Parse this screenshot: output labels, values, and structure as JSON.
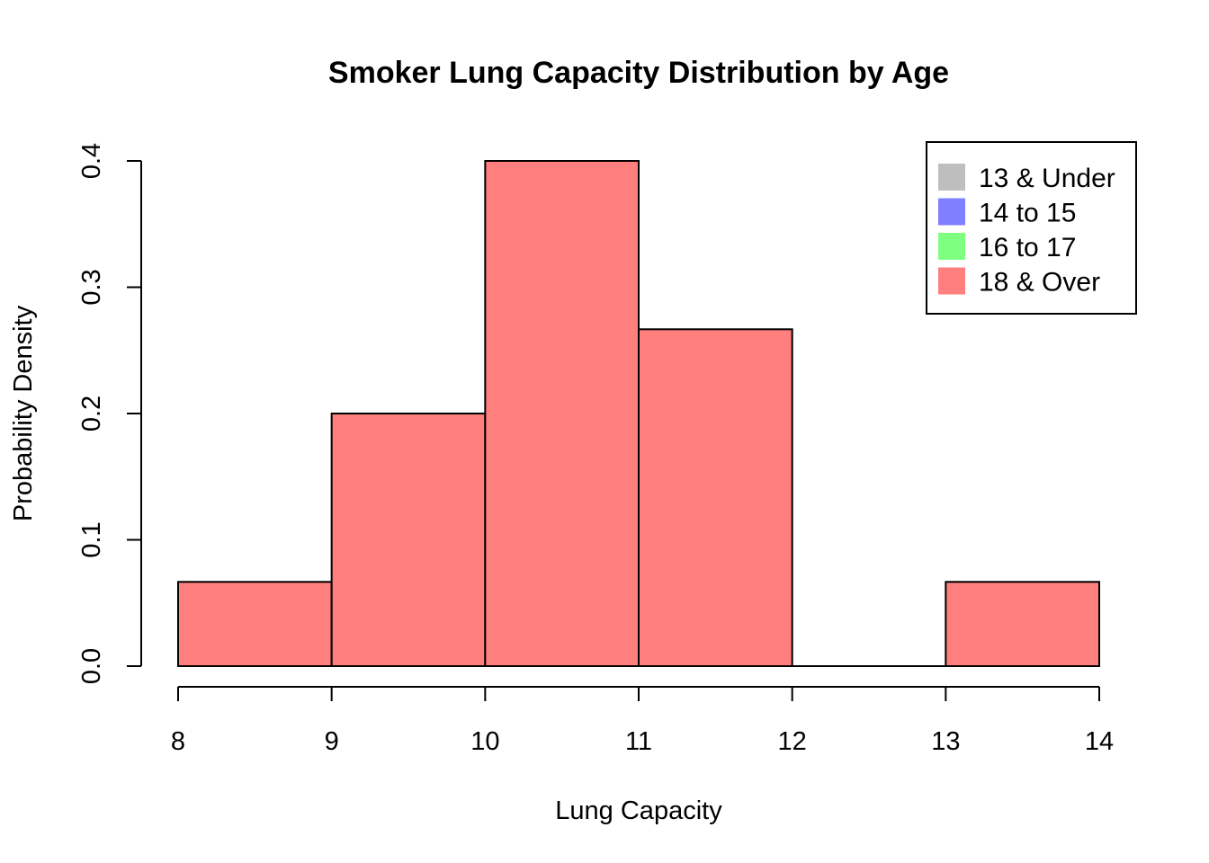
{
  "chart_data": {
    "type": "bar",
    "title": "Smoker Lung Capacity Distribution by Age",
    "xlabel": "Lung Capacity",
    "ylabel": "Probability Density",
    "x_ticks": [
      "8",
      "9",
      "10",
      "11",
      "12",
      "13",
      "14"
    ],
    "y_ticks": [
      "0.0",
      "0.1",
      "0.2",
      "0.3",
      "0.4"
    ],
    "xlim": [
      8,
      14
    ],
    "ylim": [
      0,
      0.4
    ],
    "grid": false,
    "legend_position": "top-right",
    "bins": [
      {
        "from": 8,
        "to": 9,
        "density": 0.0667
      },
      {
        "from": 9,
        "to": 10,
        "density": 0.2
      },
      {
        "from": 10,
        "to": 11,
        "density": 0.4
      },
      {
        "from": 11,
        "to": 12,
        "density": 0.2667
      },
      {
        "from": 12,
        "to": 13,
        "density": 0.0
      },
      {
        "from": 13,
        "to": 14,
        "density": 0.0667
      }
    ],
    "bar_color": "#FF7F7F",
    "legend": [
      {
        "label": "13 & Under",
        "color": "#BEBEBE"
      },
      {
        "label": "14 to 15",
        "color": "#7F7FFF"
      },
      {
        "label": "16 to 17",
        "color": "#7FFF7F"
      },
      {
        "label": "18 & Over",
        "color": "#FF7F7F"
      }
    ]
  }
}
